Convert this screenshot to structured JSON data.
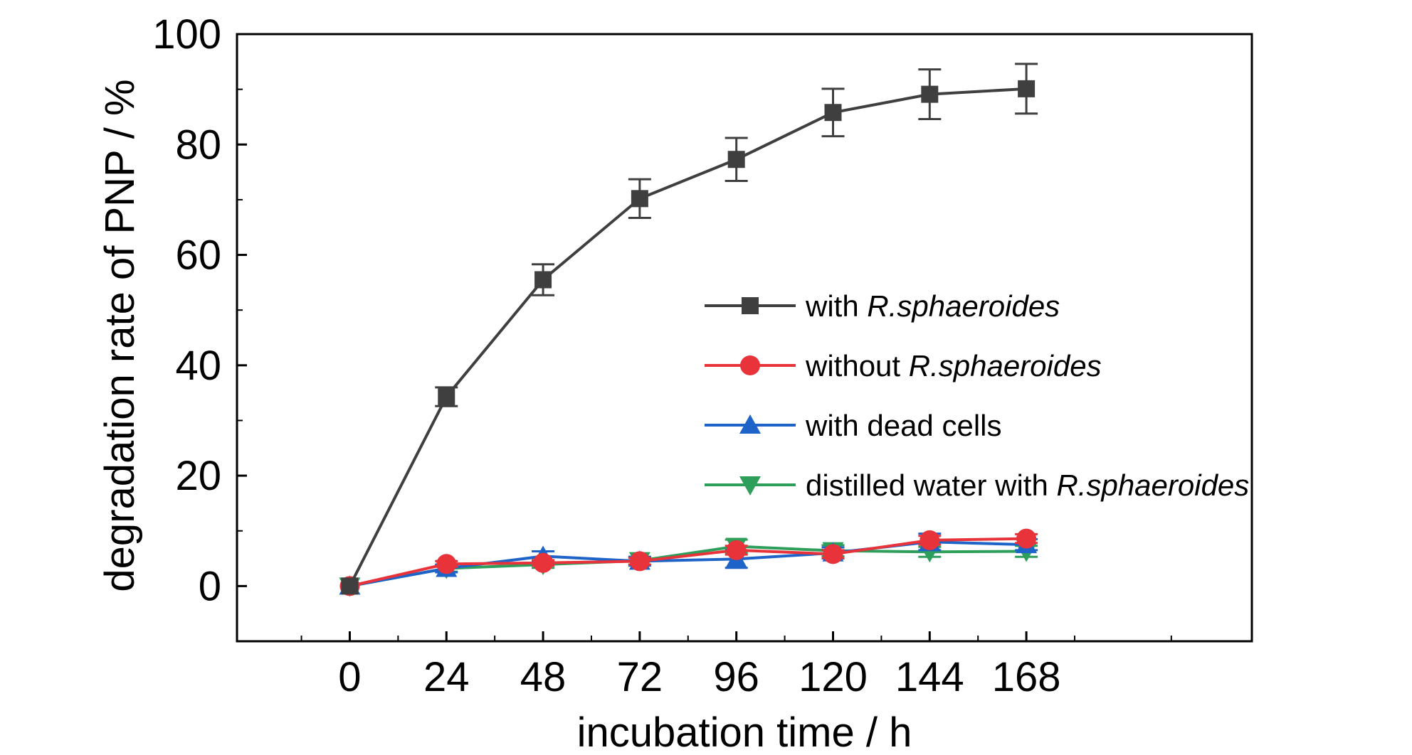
{
  "chart_data": {
    "type": "line",
    "title": "",
    "xlabel": "incubation time / h",
    "ylabel": "degradation rate of PNP / %",
    "xlim": [
      -28,
      224
    ],
    "ylim": [
      -10,
      100
    ],
    "x_ticks": [
      "0",
      "24",
      "48",
      "72",
      "96",
      "120",
      "144",
      "168"
    ],
    "y_ticks": [
      "0",
      "20",
      "40",
      "60",
      "80",
      "100"
    ],
    "legend_position": "right-center",
    "x": [
      0,
      24,
      48,
      72,
      96,
      120,
      144,
      168
    ],
    "series": [
      {
        "name": "with R.sphaeroides",
        "name_prefix": "with ",
        "name_italic": "R.sphaeroides",
        "color": "#3f3f3f",
        "marker": "square",
        "values": [
          0,
          34.3,
          55.5,
          70.2,
          77.3,
          85.8,
          89.1,
          90.1
        ],
        "errors": [
          0,
          1.7,
          2.8,
          3.5,
          3.9,
          4.3,
          4.5,
          4.5
        ]
      },
      {
        "name": "without R.sphaeroides",
        "name_prefix": "without ",
        "name_italic": "R.sphaeroides",
        "color": "#e8333a",
        "marker": "circle",
        "values": [
          0,
          4.0,
          4.2,
          4.5,
          6.5,
          5.8,
          8.3,
          8.6
        ],
        "errors": [
          0,
          0.5,
          0.5,
          0.6,
          0.8,
          0.7,
          0.8,
          0.8
        ]
      },
      {
        "name": "with dead cells",
        "name_prefix": "with dead cells",
        "name_italic": "",
        "color": "#1e64c8",
        "marker": "triangle-up",
        "values": [
          0,
          3.2,
          5.4,
          4.5,
          4.9,
          6.0,
          8.0,
          7.5
        ],
        "errors": [
          0,
          0.7,
          0.9,
          0.8,
          1.6,
          1.0,
          1.5,
          1.0
        ]
      },
      {
        "name": "distilled water with R.sphaeroides",
        "name_prefix": "distilled water with ",
        "name_italic": "R.sphaeroides",
        "color": "#2e9e5b",
        "marker": "triangle-down",
        "values": [
          0,
          3.2,
          3.9,
          4.6,
          7.2,
          6.4,
          6.2,
          6.3
        ],
        "errors": [
          0,
          0.6,
          0.6,
          0.7,
          1.2,
          1.0,
          0.9,
          1.0
        ]
      }
    ]
  }
}
